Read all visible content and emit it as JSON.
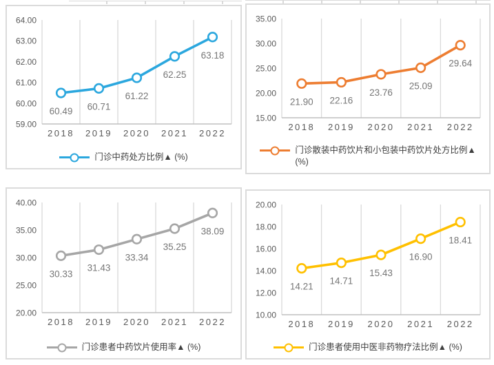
{
  "page": {
    "background": "#ffffff",
    "grid_color": "#d9d9d9",
    "axis_line_color": "#bfbfbf",
    "tick_label_color": "#595959",
    "value_label_color": "#767676"
  },
  "chart_data": [
    {
      "type": "line",
      "legend": "门诊中药处方比例▲ (%)",
      "color": "#2BA7DE",
      "categories": [
        "2018",
        "2019",
        "2020",
        "2021",
        "2022"
      ],
      "values": [
        60.49,
        60.71,
        61.22,
        62.25,
        63.18
      ],
      "labels": [
        "60.49",
        "60.71",
        "61.22",
        "62.25",
        "63.18"
      ],
      "ylim": [
        59,
        64
      ],
      "yticks": [
        "64.00",
        "63.00",
        "62.00",
        "61.00",
        "60.00",
        "59.00"
      ],
      "grid": "vertical-only",
      "legend_position": "bottom",
      "marker": "circle"
    },
    {
      "type": "line",
      "legend": "门诊散装中药饮片和小包装中药饮片处方比例▲\n(%)",
      "color": "#ED7D31",
      "categories": [
        "2018",
        "2019",
        "2020",
        "2021",
        "2022"
      ],
      "values": [
        21.9,
        22.16,
        23.76,
        25.09,
        29.64
      ],
      "labels": [
        "21.90",
        "22.16",
        "23.76",
        "25.09",
        "29.64"
      ],
      "ylim": [
        15,
        35
      ],
      "yticks": [
        "35.00",
        "30.00",
        "25.00",
        "20.00",
        "15.00"
      ],
      "grid": "vertical-only",
      "legend_position": "bottom",
      "marker": "circle"
    },
    {
      "type": "line",
      "legend": "门诊患者中药饮片使用率▲ (%)",
      "color": "#A6A6A6",
      "categories": [
        "2018",
        "2019",
        "2020",
        "2021",
        "2022"
      ],
      "values": [
        30.33,
        31.43,
        33.34,
        35.25,
        38.09
      ],
      "labels": [
        "30.33",
        "31.43",
        "33.34",
        "35.25",
        "38.09"
      ],
      "ylim": [
        20,
        40
      ],
      "yticks": [
        "40.00",
        "35.00",
        "30.00",
        "25.00",
        "20.00"
      ],
      "grid": "vertical-only",
      "legend_position": "bottom",
      "marker": "circle"
    },
    {
      "type": "line",
      "legend": "门诊患者使用中医非药物疗法比例▲ (%)",
      "color": "#FFC000",
      "categories": [
        "2018",
        "2019",
        "2020",
        "2021",
        "2022"
      ],
      "values": [
        14.21,
        14.71,
        15.43,
        16.9,
        18.41
      ],
      "labels": [
        "14.21",
        "14.71",
        "15.43",
        "16.90",
        "18.41"
      ],
      "ylim": [
        10,
        20
      ],
      "yticks": [
        "20.00",
        "18.00",
        "16.00",
        "14.00",
        "12.00",
        "10.00"
      ],
      "grid": "vertical-only",
      "legend_position": "bottom",
      "marker": "circle"
    }
  ]
}
